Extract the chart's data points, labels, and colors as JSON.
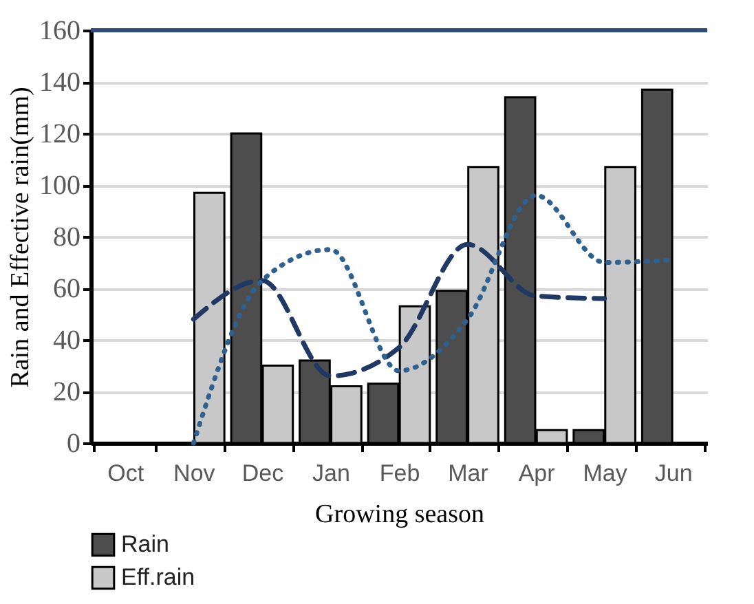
{
  "chart_data": {
    "type": "bar",
    "xlabel": "Growing season",
    "ylabel": "Rain and Effective rain(mm)",
    "categories": [
      "Oct",
      "Nov",
      "Dec",
      "Jan",
      "Feb",
      "Mar",
      "Apr",
      "May",
      "Jun"
    ],
    "series": [
      {
        "name": "Rain",
        "color": "#4d4d4d",
        "values": [
          null,
          null,
          120,
          32,
          23,
          59,
          134,
          5,
          137
        ]
      },
      {
        "name": "Eff.rain",
        "color": "#c8c8c8",
        "values": [
          null,
          97,
          30,
          22,
          53,
          107,
          5,
          107,
          null
        ]
      },
      {
        "type": "line",
        "color": "#1f3864",
        "line_style": "dashed",
        "values": [
          null,
          48,
          63,
          26,
          37,
          77,
          57,
          56,
          null
        ]
      },
      {
        "type": "line",
        "color": "#2e6190",
        "line_style": "dotted",
        "values": [
          null,
          0,
          63,
          75,
          28,
          48,
          96,
          70,
          71
        ]
      }
    ],
    "ylim": [
      0,
      160
    ],
    "yticks": [
      0,
      20,
      40,
      60,
      80,
      100,
      120,
      140,
      160
    ],
    "grid": "y",
    "legend": "bottom left",
    "ref_lines": [
      {
        "axis": "y",
        "value": 160,
        "color": "#2f4b7c"
      }
    ]
  }
}
